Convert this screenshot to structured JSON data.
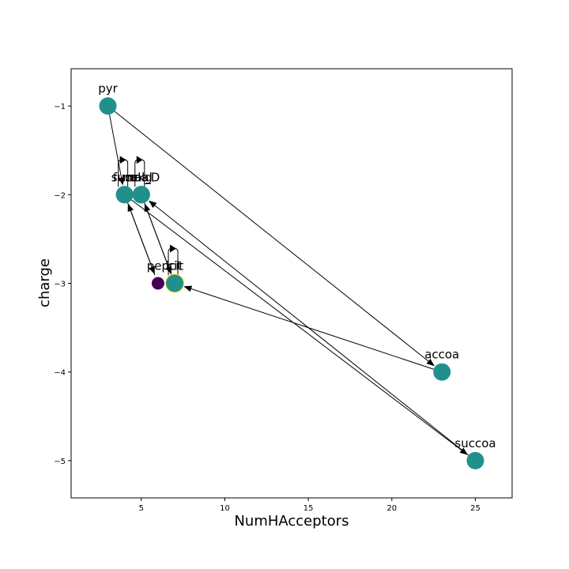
{
  "chart_data": {
    "type": "scatter",
    "title": "",
    "xlabel": "NumHAcceptors",
    "ylabel": "charge",
    "xlim": [
      0.8,
      27.2
    ],
    "ylim": [
      -5.42,
      -0.58
    ],
    "xticks": [
      5,
      10,
      15,
      20,
      25
    ],
    "yticks": [
      -1,
      -2,
      -3,
      -4,
      -5
    ],
    "grid": false,
    "legend": "none",
    "nodes": [
      {
        "label": "pyr",
        "x": 3,
        "y": -1,
        "color": "#21908d",
        "size": "large"
      },
      {
        "label": "succ",
        "x": 4,
        "y": -2,
        "color": "#21908d",
        "size": "large"
      },
      {
        "label": "fum",
        "x": 4,
        "y": -2,
        "color": "#21908d",
        "size": "large"
      },
      {
        "label": "mal",
        "x": 5,
        "y": -2,
        "color": "#21908d",
        "size": "large"
      },
      {
        "label": "akg",
        "x": 5,
        "y": -2,
        "color": "#21908d",
        "size": "large"
      },
      {
        "label": "mal_D",
        "x": 5,
        "y": -2,
        "color": "#21908d",
        "size": "large"
      },
      {
        "label": "pep",
        "x": 6,
        "y": -3,
        "color": "#440154",
        "size": "small"
      },
      {
        "label": "icit",
        "x": 7,
        "y": -3,
        "color": "#21908d",
        "size": "large",
        "outline": "#fde725"
      },
      {
        "label": "cit",
        "x": 7,
        "y": -3,
        "color": "#21908d",
        "size": "large"
      },
      {
        "label": "accoa",
        "x": 23,
        "y": -4,
        "color": "#21908d",
        "size": "large"
      },
      {
        "label": "succoa",
        "x": 25,
        "y": -5,
        "color": "#21908d",
        "size": "large"
      }
    ],
    "edges": [
      {
        "from": [
          3,
          -1
        ],
        "to": [
          23,
          -4
        ]
      },
      {
        "from": [
          3,
          -1
        ],
        "to": [
          4,
          -2
        ]
      },
      {
        "from": [
          23,
          -4
        ],
        "to": [
          7,
          -3
        ]
      },
      {
        "from": [
          4,
          -2
        ],
        "to": [
          25,
          -5
        ]
      },
      {
        "from": [
          25,
          -5
        ],
        "to": [
          5,
          -2
        ]
      },
      {
        "from": [
          5,
          -2
        ],
        "to": [
          7,
          -3
        ]
      },
      {
        "from": [
          7,
          -3
        ],
        "to": [
          5,
          -2
        ]
      },
      {
        "from": [
          6,
          -3
        ],
        "to": [
          4,
          -2
        ]
      },
      {
        "from": [
          4,
          -2
        ],
        "to": [
          6,
          -3
        ]
      }
    ],
    "self_loops": [
      [
        4,
        -2
      ],
      [
        5,
        -2
      ],
      [
        7,
        -3
      ]
    ]
  }
}
